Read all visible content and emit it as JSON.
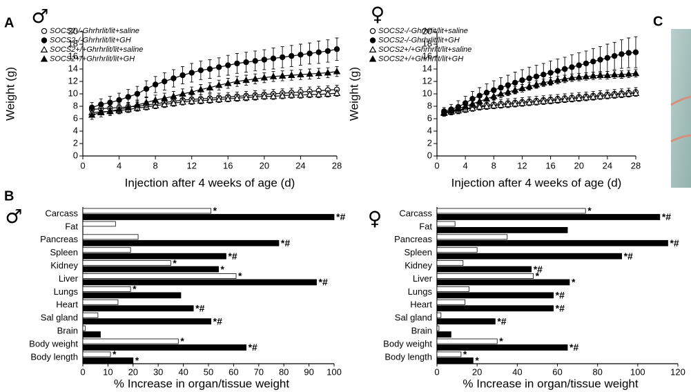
{
  "panel_labels": [
    "A",
    "B",
    "C"
  ],
  "chart_data": [
    {
      "type": "line",
      "symbol": "♂",
      "xlabel": "Injection after 4 weeks of age (d)",
      "ylabel": "Weight (g)",
      "x": [
        1,
        2,
        3,
        4,
        5,
        6,
        7,
        8,
        9,
        10,
        11,
        12,
        13,
        14,
        15,
        16,
        17,
        18,
        19,
        20,
        21,
        22,
        23,
        24,
        25,
        26,
        27,
        28
      ],
      "xlim": [
        0,
        28
      ],
      "xticks": [
        0,
        4,
        8,
        12,
        16,
        20,
        24,
        28
      ],
      "ylim": [
        0,
        20
      ],
      "yticks": [
        0,
        2,
        4,
        6,
        8,
        10,
        12,
        14,
        16,
        18,
        20
      ],
      "series": [
        {
          "name": "SOCS2-/-Ghrhrlit/lit+saline",
          "color": "#000",
          "marker": "circle",
          "filled": false,
          "values": [
            7.5,
            7.6,
            7.7,
            7.8,
            7.9,
            8.0,
            8.2,
            8.4,
            8.6,
            8.8,
            9.0,
            9.1,
            9.2,
            9.3,
            9.4,
            9.5,
            9.6,
            9.7,
            9.8,
            9.9,
            10.0,
            10.1,
            10.2,
            10.3,
            10.4,
            10.5,
            10.6,
            10.7
          ],
          "errors": [
            0.6,
            0.6,
            0.6,
            0.6,
            0.6,
            0.6,
            0.6,
            0.7,
            0.7,
            0.7,
            0.7,
            0.7,
            0.7,
            0.7,
            0.7,
            0.7,
            0.7,
            0.7,
            0.7,
            0.7,
            0.7,
            0.7,
            0.7,
            0.7,
            0.7,
            0.7,
            0.7,
            0.7
          ]
        },
        {
          "name": "SOCS2-/-Ghrhrlit/lit+GH",
          "color": "#000",
          "marker": "circle",
          "filled": true,
          "values": [
            7.8,
            8.3,
            8.6,
            9.0,
            9.5,
            10.0,
            10.8,
            11.5,
            12.0,
            12.5,
            13.0,
            13.4,
            13.8,
            14.0,
            14.3,
            14.6,
            14.9,
            15.1,
            15.3,
            15.5,
            15.7,
            15.9,
            16.1,
            16.3,
            16.5,
            16.7,
            16.9,
            17.2
          ],
          "errors": [
            0.8,
            0.9,
            1.0,
            1.1,
            1.2,
            1.2,
            1.3,
            1.3,
            1.4,
            1.4,
            1.4,
            1.5,
            1.5,
            1.5,
            1.5,
            1.6,
            1.6,
            1.6,
            1.6,
            1.6,
            1.7,
            1.7,
            1.7,
            1.7,
            1.7,
            1.8,
            1.8,
            1.8
          ]
        },
        {
          "name": "SOCS2+/+Ghrhrlit/lit+saline",
          "color": "#000",
          "marker": "triangle",
          "filled": false,
          "values": [
            7.0,
            7.1,
            7.2,
            7.3,
            7.5,
            7.7,
            7.9,
            8.1,
            8.3,
            8.5,
            8.7,
            8.8,
            8.9,
            9.0,
            9.1,
            9.2,
            9.3,
            9.4,
            9.5,
            9.6,
            9.6,
            9.7,
            9.8,
            9.8,
            9.9,
            9.9,
            10.0,
            10.1
          ],
          "errors": [
            0.5,
            0.5,
            0.5,
            0.5,
            0.5,
            0.5,
            0.5,
            0.5,
            0.5,
            0.5,
            0.5,
            0.5,
            0.5,
            0.5,
            0.5,
            0.5,
            0.5,
            0.5,
            0.5,
            0.5,
            0.5,
            0.5,
            0.5,
            0.5,
            0.5,
            0.5,
            0.5,
            0.5
          ]
        },
        {
          "name": "SOCS2+/+Ghrhrlit/lit+GH",
          "color": "#000",
          "marker": "triangle",
          "filled": true,
          "values": [
            6.6,
            7.0,
            7.2,
            7.5,
            7.8,
            8.2,
            8.6,
            9.0,
            9.3,
            9.6,
            10.0,
            10.3,
            10.7,
            11.0,
            11.4,
            11.7,
            12.0,
            12.2,
            12.4,
            12.6,
            12.8,
            12.9,
            13.0,
            13.1,
            13.2,
            13.3,
            13.4,
            13.6
          ],
          "errors": [
            0.7,
            0.7,
            0.7,
            0.7,
            0.8,
            0.8,
            0.8,
            0.8,
            0.8,
            0.8,
            0.8,
            0.8,
            0.8,
            0.8,
            0.8,
            0.8,
            0.8,
            0.8,
            0.8,
            0.8,
            0.8,
            0.8,
            0.8,
            0.8,
            0.8,
            0.8,
            0.8,
            0.8
          ]
        }
      ]
    },
    {
      "type": "line",
      "symbol": "♀",
      "xlabel": "Injection after 4 weeks of age (d)",
      "ylabel": "Weight (g)",
      "x": [
        1,
        2,
        3,
        4,
        5,
        6,
        7,
        8,
        9,
        10,
        11,
        12,
        13,
        14,
        15,
        16,
        17,
        18,
        19,
        20,
        21,
        22,
        23,
        24,
        25,
        26,
        27,
        28
      ],
      "xlim": [
        0,
        28
      ],
      "xticks": [
        0,
        4,
        8,
        12,
        16,
        20,
        24,
        28
      ],
      "ylim": [
        0,
        20
      ],
      "yticks": [
        0,
        2,
        4,
        6,
        8,
        10,
        12,
        14,
        16,
        18,
        20
      ],
      "series": [
        {
          "name": "SOCS2-/-Ghrhrlit/lit+saline",
          "color": "#000",
          "marker": "circle",
          "filled": false,
          "values": [
            7.0,
            7.2,
            7.4,
            7.6,
            7.8,
            8.0,
            8.2,
            8.3,
            8.4,
            8.5,
            8.6,
            8.7,
            8.8,
            8.9,
            9.0,
            9.1,
            9.2,
            9.3,
            9.4,
            9.5,
            9.6,
            9.7,
            9.8,
            9.9,
            10.0,
            10.1,
            10.2,
            10.3
          ],
          "errors": [
            0.5,
            0.5,
            0.6,
            0.6,
            0.6,
            0.6,
            0.7,
            0.7,
            0.7,
            0.7,
            0.7,
            0.7,
            0.7,
            0.7,
            0.7,
            0.7,
            0.7,
            0.7,
            0.7,
            0.7,
            0.7,
            0.7,
            0.7,
            0.7,
            0.7,
            0.7,
            0.7,
            0.7
          ]
        },
        {
          "name": "SOCS2-/-Ghrhrlit/lit+GH",
          "color": "#000",
          "marker": "circle",
          "filled": true,
          "values": [
            7.2,
            7.5,
            7.9,
            8.5,
            9.2,
            9.7,
            10.2,
            10.6,
            11.0,
            11.4,
            11.8,
            12.2,
            12.5,
            12.8,
            13.1,
            13.4,
            13.7,
            14.0,
            14.3,
            14.6,
            14.9,
            15.2,
            15.5,
            15.8,
            16.1,
            16.4,
            16.6,
            16.7
          ],
          "errors": [
            0.6,
            0.8,
            1.0,
            1.1,
            1.2,
            1.3,
            1.4,
            1.5,
            1.6,
            1.6,
            1.7,
            1.7,
            1.8,
            1.8,
            1.8,
            1.9,
            1.9,
            1.9,
            2.0,
            2.0,
            2.0,
            2.1,
            2.1,
            2.2,
            2.2,
            2.3,
            2.4,
            2.5
          ]
        },
        {
          "name": "SOCS2+/+Ghrhrlit/lit+saline",
          "color": "#000",
          "marker": "triangle",
          "filled": false,
          "values": [
            6.9,
            7.1,
            7.3,
            7.5,
            7.7,
            7.9,
            8.0,
            8.1,
            8.2,
            8.3,
            8.4,
            8.5,
            8.6,
            8.7,
            8.8,
            8.9,
            9.0,
            9.1,
            9.2,
            9.3,
            9.4,
            9.5,
            9.6,
            9.7,
            9.8,
            9.9,
            10.0,
            10.1
          ],
          "errors": [
            0.5,
            0.5,
            0.5,
            0.5,
            0.5,
            0.5,
            0.5,
            0.5,
            0.5,
            0.5,
            0.5,
            0.5,
            0.5,
            0.5,
            0.5,
            0.5,
            0.5,
            0.5,
            0.5,
            0.5,
            0.5,
            0.5,
            0.5,
            0.5,
            0.5,
            0.5,
            0.5,
            0.5
          ]
        },
        {
          "name": "SOCS2+/+Ghrhrlit/lit+GH",
          "color": "#000",
          "marker": "triangle",
          "filled": true,
          "values": [
            7.0,
            7.3,
            7.6,
            8.0,
            8.4,
            8.8,
            9.2,
            9.6,
            10.0,
            10.3,
            10.6,
            10.9,
            11.2,
            11.5,
            11.8,
            12.0,
            12.2,
            12.4,
            12.6,
            12.7,
            12.8,
            12.9,
            13.0,
            13.0,
            13.1,
            13.1,
            13.2,
            13.3
          ],
          "errors": [
            0.5,
            0.5,
            0.5,
            0.6,
            0.6,
            0.6,
            0.6,
            0.6,
            0.6,
            0.6,
            0.6,
            0.6,
            0.6,
            0.6,
            0.6,
            0.6,
            0.6,
            0.6,
            0.6,
            0.6,
            0.6,
            0.6,
            0.6,
            0.6,
            0.6,
            0.6,
            0.6,
            0.6
          ]
        }
      ]
    },
    {
      "type": "hbar",
      "symbol": "♂",
      "xlabel": "% Increase in organ/tissue weight",
      "categories": [
        "Carcass",
        "Fat",
        "Pancreas",
        "Spleen",
        "Kidney",
        "Liver",
        "Lungs",
        "Heart",
        "Sal gland",
        "Brain",
        "Body weight",
        "Body length"
      ],
      "xlim": [
        0,
        100
      ],
      "xticks": [
        0,
        10,
        20,
        30,
        40,
        50,
        60,
        70,
        80,
        90,
        100
      ],
      "series": [
        {
          "color": "#ffffff",
          "values": [
            51,
            13,
            22,
            19,
            35,
            61,
            19,
            14,
            6,
            1,
            38,
            11
          ],
          "annotations": [
            "*",
            null,
            null,
            null,
            "*",
            "*",
            "*",
            null,
            null,
            null,
            "*",
            "*"
          ]
        },
        {
          "color": "#000000",
          "values": [
            100,
            null,
            78,
            57,
            54,
            93,
            39,
            44,
            51,
            7,
            65,
            20
          ],
          "annotations": [
            "*#",
            null,
            "*#",
            "*#",
            "*",
            "*#",
            null,
            "*#",
            "*#",
            null,
            "*#",
            "*"
          ]
        }
      ]
    },
    {
      "type": "hbar",
      "symbol": "♀",
      "xlabel": "% Increase in organ/tissue weight",
      "categories": [
        "Carcass",
        "Fat",
        "Pancreas",
        "Spleen",
        "Kidney",
        "Liver",
        "Lungs",
        "Heart",
        "Sal gland",
        "Brain",
        "Body weight",
        "Body length"
      ],
      "xlim": [
        0,
        120
      ],
      "xticks": [
        0,
        20,
        40,
        60,
        80,
        100,
        120
      ],
      "series": [
        {
          "color": "#ffffff",
          "values": [
            74,
            9,
            35,
            20,
            13,
            48,
            16,
            14,
            2,
            1,
            30,
            12
          ],
          "annotations": [
            "*",
            null,
            null,
            null,
            null,
            "*",
            null,
            null,
            null,
            null,
            "*",
            "*"
          ]
        },
        {
          "color": "#000000",
          "values": [
            111,
            65,
            115,
            92,
            47,
            66,
            58,
            58,
            29,
            7,
            65,
            18
          ],
          "annotations": [
            "*#",
            null,
            "*#",
            "*#",
            "*#",
            "*",
            "*#",
            "*#",
            "*#",
            null,
            "*#",
            "*"
          ]
        }
      ]
    }
  ]
}
